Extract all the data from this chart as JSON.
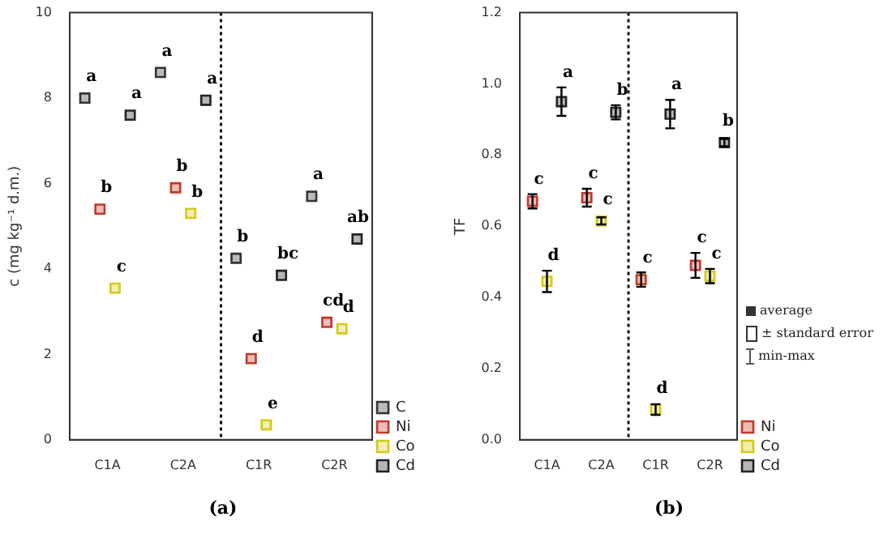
{
  "chart_data": [
    {
      "type": "scatter",
      "title": "(a)",
      "ylabel": "c (mg kg⁻¹ d.m.)",
      "categories": [
        "C1A",
        "C2A",
        "C1R",
        "C2R"
      ],
      "ylim": [
        0,
        10
      ],
      "yticks": [
        0,
        2,
        4,
        6,
        8,
        10
      ],
      "grid": false,
      "legend": "bottom right",
      "marker": "square",
      "series": [
        {
          "name": "C",
          "color": "#333333",
          "values": [
            8.0,
            8.6,
            4.25,
            5.7
          ],
          "value_labels": [
            "a",
            "a",
            "b",
            "a"
          ]
        },
        {
          "name": "Ni",
          "color": "#c0392b",
          "values": [
            5.4,
            5.9,
            1.9,
            2.75
          ],
          "value_labels": [
            "b",
            "b",
            "d",
            "cd"
          ]
        },
        {
          "name": "Co",
          "color": "#d4c81a",
          "values": [
            3.55,
            5.3,
            0.35,
            2.6
          ],
          "value_labels": [
            "c",
            "b",
            "e",
            "d"
          ]
        },
        {
          "name": "Cd",
          "color": "#222222",
          "values": [
            7.6,
            7.95,
            3.85,
            4.7
          ],
          "value_labels": [
            "a",
            "a",
            "bc",
            "ab"
          ]
        }
      ]
    },
    {
      "type": "scatter",
      "title": "(b)",
      "ylabel": "TF",
      "categories": [
        "C1A",
        "C2A",
        "C1R",
        "C2R"
      ],
      "ylim": [
        0,
        1.2
      ],
      "yticks": [
        {
          "value": 0,
          "label": "0.0"
        },
        0.2,
        0.4,
        0.6,
        0.8,
        {
          "value": 1,
          "label": "1.0"
        },
        1.2
      ],
      "grid": false,
      "legend": "bottom right",
      "marker": "square",
      "annotations": [
        "average",
        "± standard error",
        "min-max"
      ],
      "series": [
        {
          "name": "Ni",
          "color": "#c0392b",
          "values": [
            0.67,
            0.68,
            0.45,
            0.49
          ],
          "errors": [
            0.02,
            0.025,
            0.02,
            0.035
          ],
          "value_labels": [
            "c",
            "c",
            "c",
            "c"
          ]
        },
        {
          "name": "Co",
          "color": "#d4c81a",
          "values": [
            0.445,
            0.615,
            0.085,
            0.46
          ],
          "errors": [
            0.03,
            0.01,
            0.015,
            0.02
          ],
          "value_labels": [
            "d",
            "c",
            "d",
            "c"
          ]
        },
        {
          "name": "Cd",
          "color": "#222222",
          "values": [
            0.95,
            0.92,
            0.915,
            0.835
          ],
          "errors": [
            0.04,
            0.02,
            0.04,
            0.01
          ],
          "value_labels": [
            "a",
            "b",
            "a",
            "b"
          ]
        }
      ]
    }
  ]
}
